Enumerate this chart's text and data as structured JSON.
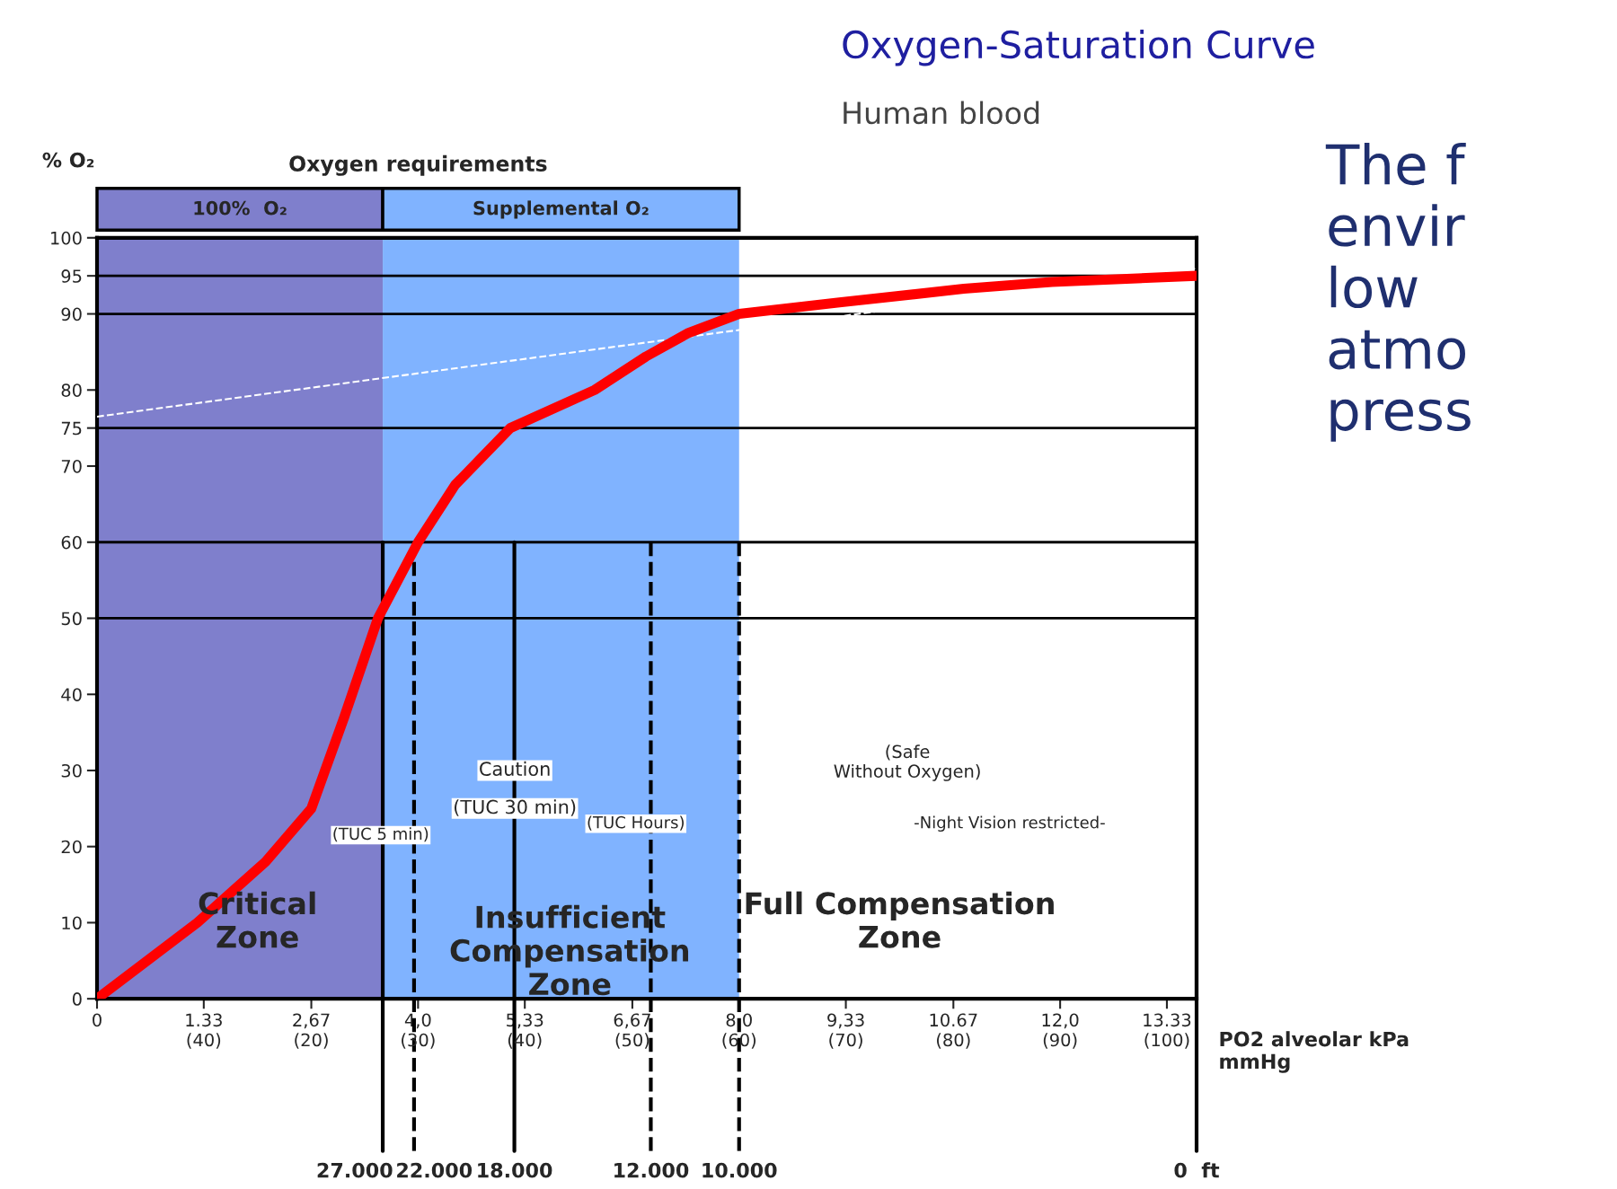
{
  "chart_data": {
    "type": "line",
    "title": "Oxygen-Saturation Curve",
    "subtitle": "Human blood",
    "xlabel": "PO2 alveolar kPa\nmmHg",
    "ylabel": "% O₂",
    "xlim": [
      0,
      13.7
    ],
    "ylim": [
      0,
      100
    ],
    "xticks": [
      0,
      1.33,
      {
        "value": 2.67,
        "label": "2,67"
      },
      {
        "value": 4.0,
        "label": "4,0"
      },
      {
        "value": 5.33,
        "label": "5,33"
      },
      {
        "value": 6.67,
        "label": "6,67"
      },
      {
        "value": 8.0,
        "label": "8,0"
      },
      {
        "value": 9.33,
        "label": "9,33"
      },
      10.67,
      {
        "value": 12.0,
        "label": "12,0"
      },
      13.33
    ],
    "yticks": [
      0,
      10,
      20,
      30,
      40,
      50,
      60,
      70,
      75,
      80,
      90,
      95,
      100
    ],
    "grid": false,
    "legend": false,
    "series": [
      {
        "color": "#ff0000",
        "x": [
          0,
          1.25,
          2.1,
          2.67,
          3.08,
          3.5,
          4.0,
          4.46,
          5.15,
          6.2,
          6.84,
          7.37,
          8.0,
          9.25,
          10.8,
          11.9,
          13.7
        ],
        "values": [
          0,
          10,
          18,
          25,
          37,
          50,
          60,
          67.5,
          75,
          80,
          84.4,
          87.5,
          90,
          91.5,
          93.3,
          94.2,
          95
        ]
      },
      {
        "color": "#ffffff",
        "line_style": "dashed",
        "x": [
          0,
          13.7
        ],
        "values": [
          76.5,
          96
        ]
      }
    ],
    "bands": [
      {
        "axis": "x",
        "from": 0,
        "to": 3.56,
        "label": "100%  O₂",
        "color": "#7f7fcc"
      },
      {
        "axis": "x",
        "from": 3.56,
        "to": 8.0,
        "label": "Supplemental O₂",
        "color": "#80b3ff"
      }
    ],
    "ref_lines": [
      {
        "axis": "x",
        "value": 3.56,
        "line_style": "solid"
      },
      {
        "axis": "x",
        "value": 3.95,
        "line_style": "dashed"
      },
      {
        "axis": "x",
        "value": 5.2,
        "line_style": "solid"
      },
      {
        "axis": "x",
        "value": 6.9,
        "line_style": "dashed"
      },
      {
        "axis": "x",
        "value": 8.0,
        "line_style": "dashed"
      },
      {
        "axis": "x",
        "value": 13.7,
        "line_style": "solid"
      },
      {
        "axis": "y",
        "value": 95
      },
      {
        "axis": "y",
        "value": 90
      },
      {
        "axis": "y",
        "value": 75
      },
      {
        "axis": "y",
        "value": 60
      },
      {
        "axis": "y",
        "value": 50
      }
    ],
    "annotations": [
      "Oxygen requirements",
      "The f\nenvir\nlow\natmo\npress",
      "Critical\nZone",
      "Insufficient\nCompensation\nZone",
      "Full Compensation\nZone",
      "(TUC 5 min)",
      "Caution",
      "(TUC 30 min)",
      "(TUC Hours)",
      "(Safe\nWithout Oxygen)",
      "-Night Vision restricted-",
      "27.000",
      "22.000",
      "18.000",
      "12.000",
      "10.000",
      "0  ft",
      "(40)",
      "(20)",
      "(30)",
      "(40)",
      "(50)",
      "(60)",
      "(70)",
      "(80)",
      "(90)",
      "(100)"
    ]
  }
}
